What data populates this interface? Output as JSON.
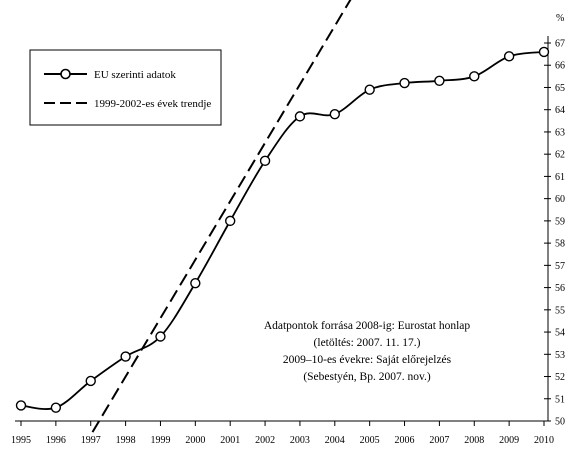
{
  "chart_data": {
    "type": "line",
    "title": "",
    "xlabel": "",
    "ylabel": "",
    "y_unit": "%",
    "x": [
      1995,
      1996,
      1997,
      1998,
      1999,
      2000,
      2001,
      2002,
      2003,
      2004,
      2005,
      2006,
      2007,
      2008,
      2009,
      2010
    ],
    "xlim": [
      1995,
      2010
    ],
    "ylim": [
      50,
      67
    ],
    "y_ticks": [
      50,
      51,
      52,
      53,
      54,
      55,
      56,
      57,
      58,
      59,
      60,
      61,
      62,
      63,
      64,
      65,
      66,
      67
    ],
    "grid": false,
    "series": [
      {
        "name": "EU szerinti adatok",
        "style": "solid line with circle markers",
        "color": "#000000",
        "values": [
          50.7,
          50.6,
          51.8,
          52.9,
          53.8,
          56.2,
          59.0,
          61.7,
          63.7,
          63.8,
          64.9,
          65.2,
          65.3,
          65.5,
          66.4,
          66.6
        ]
      },
      {
        "name": "1999-2002-es évek trendje",
        "style": "dashed line",
        "color": "#000000",
        "x": [
          1997.05,
          2004.85
        ],
        "values": [
          49.5,
          70.0
        ]
      }
    ],
    "legend": {
      "position": "top-left",
      "entries": [
        "EU szerinti adatok",
        "1999-2002-es évek trendje"
      ]
    },
    "annotation": {
      "lines": [
        "Adatpontok forrása 2008-ig: Eurostat honlap",
        "(letöltés: 2007. 11. 17.)",
        "2009–10-es évekre: Saját előrejelzés",
        "(Sebestyén, Bp. 2007. nov.)"
      ]
    }
  }
}
